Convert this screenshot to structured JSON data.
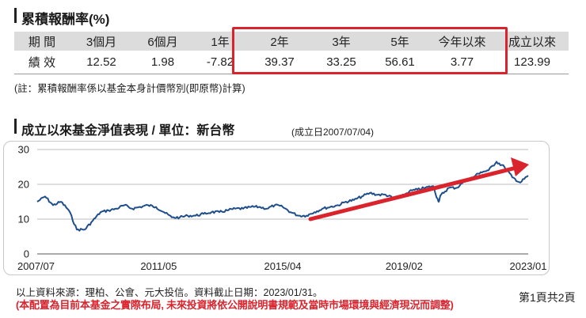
{
  "returns": {
    "title": "累積報酬率(%)",
    "row_label_period": "期 間",
    "row_label_performance": "績 效",
    "periods": [
      "3個月",
      "6個月",
      "1年",
      "2年",
      "3年",
      "5年",
      "今年以來",
      "成立以來"
    ],
    "values": [
      "12.52",
      "1.98",
      "-7.82",
      "39.37",
      "33.25",
      "56.61",
      "3.77",
      "123.99"
    ],
    "highlighted_periods": [
      "2年",
      "3年",
      "5年",
      "今年以來",
      "成立以來"
    ],
    "note": "(註：累積報酬率係以基金本身計價幣別(即原幣)計算)"
  },
  "nav_section": {
    "title": "成立以來基金淨值表現 / 單位：新台幣",
    "inception": "(成立日2007/07/04)"
  },
  "footer": {
    "source": "以上資料來源：理柏、公會、元大投信。資料截止日期：2023/01/31。",
    "disclaimer": "(本配置為目前本基金之實際布局, 未來投資將依公開說明書規範及當時市場環境與經濟現況而調整)",
    "page": "第1頁共2頁"
  },
  "colors": {
    "line": "#1f4e8c",
    "highlight": "#d9232d",
    "header_bg": "#dcdcdc",
    "grid": "#bdbdbd"
  },
  "chart_data": {
    "type": "line",
    "title": "成立以來基金淨值表現 / 單位：新台幣",
    "xlabel": "",
    "ylabel": "",
    "ylim": [
      0,
      30
    ],
    "yticks": [
      0,
      10,
      20,
      30
    ],
    "xlim": [
      "2007/07",
      "2023/01"
    ],
    "xticks": [
      "2007/07",
      "2011/05",
      "2015/04",
      "2019/02",
      "2023/01"
    ],
    "grid": "horizontal",
    "series": [
      {
        "color": "#1f4e8c",
        "x": [
          "2007/07",
          "2007/10",
          "2008/01",
          "2008/04",
          "2008/07",
          "2008/10",
          "2009/01",
          "2009/04",
          "2009/07",
          "2009/10",
          "2010/01",
          "2010/04",
          "2010/07",
          "2010/10",
          "2011/01",
          "2011/04",
          "2011/07",
          "2011/10",
          "2012/01",
          "2012/04",
          "2012/07",
          "2012/10",
          "2013/01",
          "2013/04",
          "2013/07",
          "2013/10",
          "2014/01",
          "2014/04",
          "2014/07",
          "2014/10",
          "2015/01",
          "2015/04",
          "2015/07",
          "2015/10",
          "2016/01",
          "2016/04",
          "2016/07",
          "2016/10",
          "2017/01",
          "2017/04",
          "2017/07",
          "2017/10",
          "2018/01",
          "2018/04",
          "2018/07",
          "2018/10",
          "2019/01",
          "2019/04",
          "2019/07",
          "2019/10",
          "2020/01",
          "2020/03",
          "2020/04",
          "2020/07",
          "2020/10",
          "2021/01",
          "2021/04",
          "2021/07",
          "2021/10",
          "2022/01",
          "2022/04",
          "2022/07",
          "2022/10",
          "2023/01"
        ],
        "y": [
          15.0,
          16.5,
          14.0,
          15.0,
          12.5,
          7.0,
          7.0,
          9.5,
          12.0,
          12.5,
          13.0,
          14.0,
          13.0,
          13.5,
          14.0,
          13.5,
          12.0,
          10.5,
          10.5,
          11.0,
          11.0,
          11.5,
          12.0,
          12.0,
          12.5,
          13.0,
          13.0,
          13.5,
          13.5,
          13.0,
          14.0,
          13.5,
          12.0,
          11.0,
          11.0,
          12.0,
          13.0,
          13.5,
          14.0,
          15.0,
          15.5,
          16.5,
          17.5,
          17.0,
          17.0,
          16.0,
          16.5,
          18.0,
          18.5,
          19.0,
          19.5,
          15.0,
          17.0,
          19.0,
          19.0,
          21.0,
          22.0,
          23.5,
          24.0,
          26.5,
          25.0,
          22.0,
          20.5,
          22.5
        ]
      }
    ]
  }
}
